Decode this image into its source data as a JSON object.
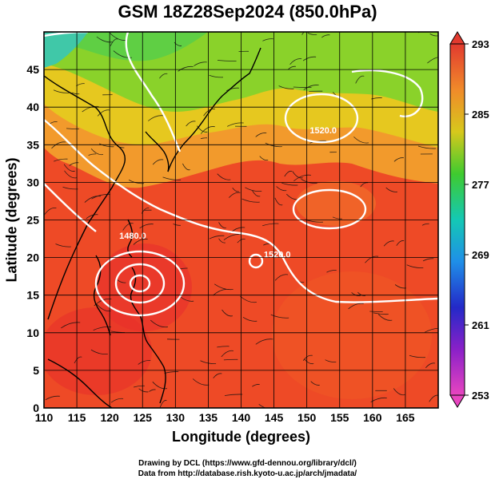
{
  "title": "GSM 18Z28Sep2024 (850.0hPa)",
  "x_axis_label": "Longitude (degrees)",
  "y_axis_label": "Latitude  (degrees)",
  "credits": [
    "Drawing by DCL (https://www.gfd-dennou.org/library/dcl/)",
    "Data from http://database.rish.kyoto-u.ac.jp/arch/jmadata/"
  ],
  "map_data": {
    "type": "map",
    "lon_range": [
      110,
      170
    ],
    "lat_range": [
      0,
      50
    ],
    "x_ticks": [
      110,
      115,
      120,
      125,
      130,
      135,
      140,
      145,
      150,
      155,
      160,
      165
    ],
    "y_ticks": [
      0,
      5,
      10,
      15,
      20,
      25,
      30,
      35,
      40,
      45
    ],
    "x_tick_labels": [
      "110",
      "115",
      "120",
      "125",
      "130",
      "135",
      "140",
      "145",
      "150",
      "155",
      "160",
      "165"
    ],
    "y_tick_labels": [
      "0",
      "5",
      "10",
      "15",
      "20",
      "25",
      "30",
      "35",
      "40",
      "45"
    ],
    "colorbar": {
      "ticks": [
        "293",
        "285",
        "277",
        "269",
        "261",
        "253"
      ],
      "colors": [
        "#e23a2f",
        "#f08a2a",
        "#d7c81c",
        "#3fcb2f",
        "#14c8b4",
        "#1f8fe8",
        "#2329c8",
        "#8a20c8",
        "#e845c0"
      ]
    },
    "contour_labels": [
      {
        "text": "1520.0",
        "lon": 152.5,
        "lat": 36.5
      },
      {
        "text": "1480.0",
        "lon": 123.5,
        "lat": 22.5
      },
      {
        "text": "1520.0",
        "lon": 145.5,
        "lat": 20.0
      }
    ]
  }
}
